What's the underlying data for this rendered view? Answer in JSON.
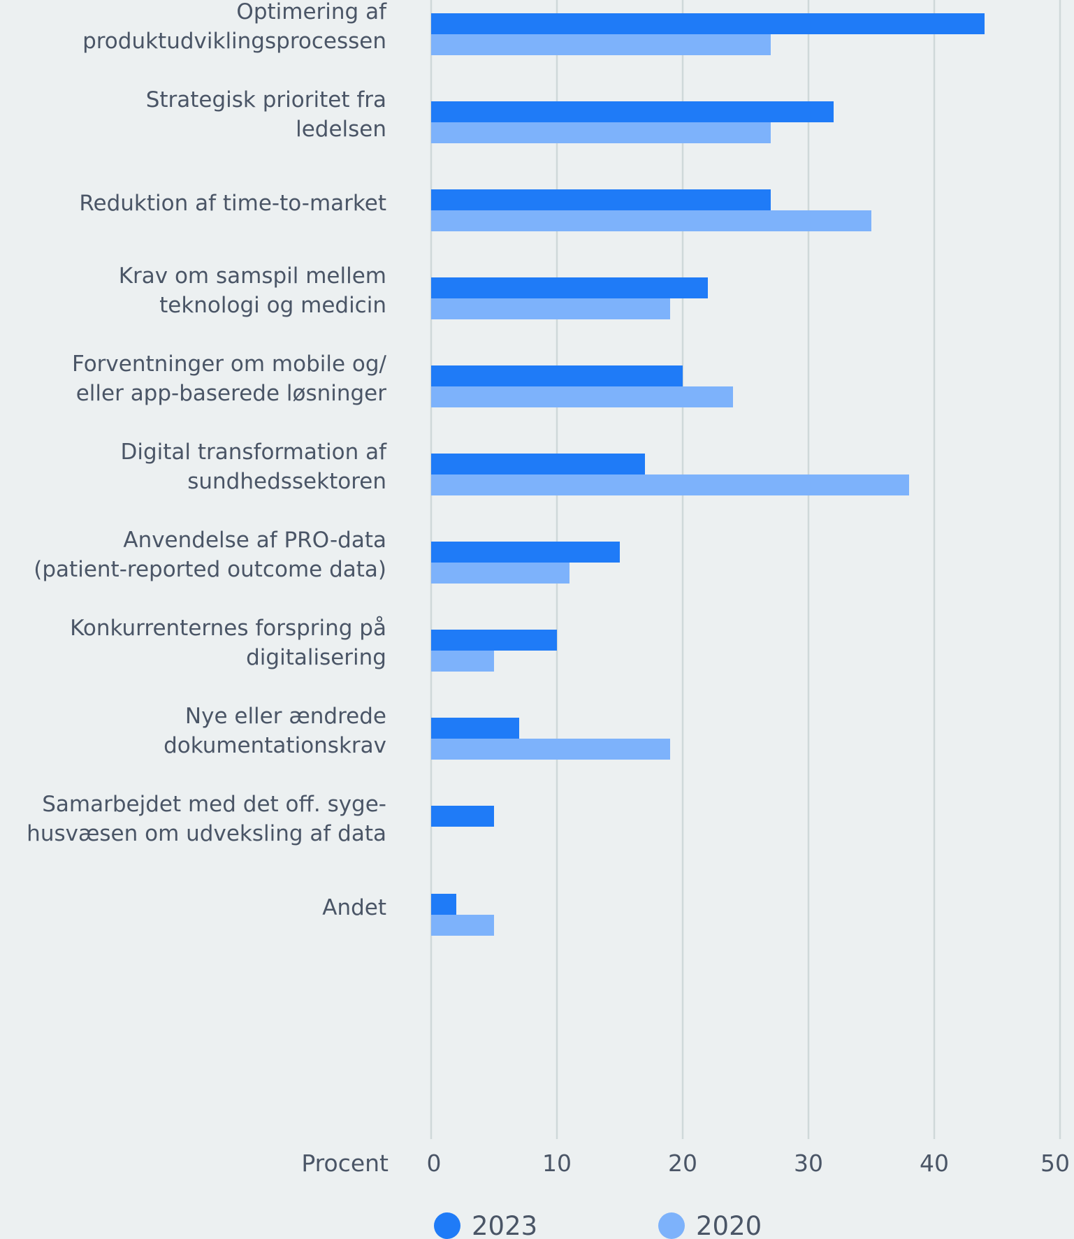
{
  "chart_data": {
    "type": "bar",
    "orientation": "horizontal",
    "categories": [
      [
        "Optimering af",
        "produktudviklingsprocessen"
      ],
      [
        "Strategisk prioritet fra",
        "ledelsen"
      ],
      [
        "Reduktion af time-to-market"
      ],
      [
        "Krav om samspil mellem",
        "teknologi og medicin"
      ],
      [
        "Forventninger om mobile og/",
        "eller app-baserede løsninger"
      ],
      [
        "Digital transformation af",
        "sundhedssektoren"
      ],
      [
        "Anvendelse af PRO-data",
        "(patient-reported outcome data)"
      ],
      [
        "Konkurrenternes forspring på",
        "digitalisering"
      ],
      [
        "Nye eller ændrede",
        "dokumentationskrav"
      ],
      [
        "Samarbejdet med det off. syge-",
        "husvæsen om udveksling af data"
      ],
      [
        "Andet"
      ]
    ],
    "series": [
      {
        "name": "2023",
        "color": "#1f7bf7",
        "values": [
          44,
          32,
          27,
          22,
          20,
          17,
          15,
          10,
          7,
          5,
          2
        ]
      },
      {
        "name": "2020",
        "color": "#7db2fb",
        "values": [
          27,
          27,
          35,
          19,
          24,
          38,
          11,
          5,
          19,
          null,
          5
        ]
      }
    ],
    "xlabel": "Procent",
    "xlim": [
      0,
      50
    ],
    "xticks": [
      0,
      10,
      20,
      30,
      40,
      50
    ],
    "grid": true,
    "legend_position": "bottom"
  }
}
